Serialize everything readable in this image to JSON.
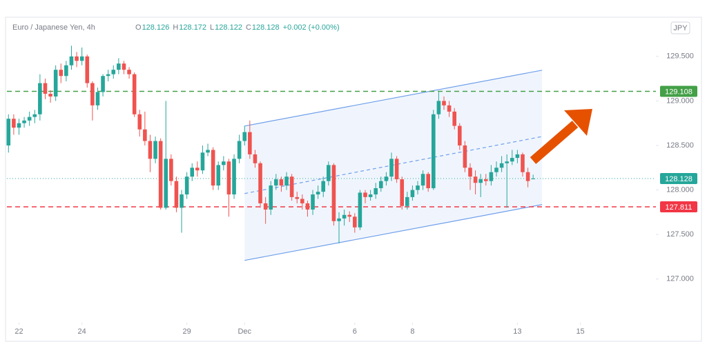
{
  "chart_data": {
    "type": "candlestick",
    "title": "Euro / Japanese Yen, 4h",
    "ohlc_legend": [
      {
        "label": "O",
        "value": 128.126
      },
      {
        "label": "H",
        "value": 128.172
      },
      {
        "label": "L",
        "value": 128.122
      },
      {
        "label": "C",
        "value": 128.128
      }
    ],
    "change": "+0.002 (+0.00%)",
    "currency": "JPY",
    "up_color": "#26a69a",
    "down_color": "#ef5350",
    "x": [
      0,
      1,
      2,
      3,
      4,
      5,
      6,
      7,
      8,
      9,
      10,
      11,
      12,
      13,
      14,
      15,
      16,
      17,
      18,
      19,
      20,
      21,
      22,
      23,
      24,
      25,
      26,
      27,
      28,
      29,
      30,
      31,
      32,
      33,
      34,
      35,
      36,
      37,
      38,
      39,
      40,
      41,
      42,
      43,
      44,
      45,
      46,
      47,
      48,
      49,
      50,
      51,
      52,
      53,
      54,
      55,
      56,
      57,
      58,
      59,
      60,
      61,
      62,
      63,
      64,
      65,
      66,
      67,
      68,
      69,
      70,
      71,
      72,
      73,
      74,
      75,
      76,
      77,
      78,
      79,
      80,
      81,
      82,
      83,
      84,
      85,
      86,
      87,
      88,
      89,
      90,
      91,
      92,
      93,
      94,
      95,
      96,
      97,
      98,
      99,
      100
    ],
    "open": [
      128.5,
      128.8,
      128.7,
      128.75,
      128.78,
      128.82,
      128.85,
      129.2,
      129.08,
      129.05,
      129.35,
      129.28,
      129.4,
      129.5,
      129.45,
      129.5,
      129.2,
      128.95,
      129.1,
      129.28,
      129.3,
      129.35,
      129.42,
      129.35,
      129.3,
      128.85,
      128.68,
      128.55,
      128.35,
      128.55,
      127.8,
      128.35,
      128.1,
      127.8,
      127.95,
      128.15,
      128.25,
      128.22,
      128.42,
      128.45,
      128.05,
      128.28,
      128.32,
      127.95,
      128.35,
      128.55,
      128.65,
      128.4,
      128.3,
      127.85,
      127.78,
      128.05,
      128.12,
      128.05,
      128.15,
      127.92,
      127.9,
      127.85,
      127.78,
      127.95,
      127.98,
      128.1,
      128.28,
      127.65,
      127.68,
      127.72,
      127.7,
      127.58,
      127.97,
      127.92,
      127.95,
      128.02,
      128.1,
      128.15,
      128.35,
      128.12,
      127.82,
      127.92,
      128.0,
      128.05,
      128.18,
      128.02,
      128.85,
      129.0,
      128.95,
      128.88,
      128.72,
      128.5,
      128.25,
      128.15,
      128.08,
      128.12,
      128.1,
      128.2,
      128.25,
      128.3,
      128.32,
      128.36,
      128.4,
      128.2,
      128.126
    ],
    "high": [
      128.85,
      128.85,
      128.8,
      128.82,
      128.88,
      128.9,
      129.3,
      129.25,
      129.12,
      129.4,
      129.42,
      129.45,
      129.62,
      129.55,
      129.6,
      129.52,
      129.22,
      129.15,
      129.3,
      129.35,
      129.4,
      129.48,
      129.45,
      129.38,
      129.32,
      128.9,
      128.88,
      128.62,
      128.6,
      128.58,
      129.0,
      128.4,
      128.15,
      128.0,
      128.2,
      128.3,
      128.32,
      128.5,
      128.52,
      128.48,
      128.32,
      128.38,
      128.35,
      128.4,
      128.62,
      128.72,
      128.78,
      128.45,
      128.32,
      127.92,
      128.1,
      128.18,
      128.15,
      128.2,
      128.18,
      127.98,
      127.95,
      127.88,
      128.0,
      128.05,
      128.15,
      128.32,
      128.3,
      127.75,
      127.78,
      127.76,
      127.74,
      128.0,
      128.0,
      128.0,
      128.08,
      128.15,
      128.2,
      128.42,
      128.38,
      128.15,
      127.98,
      128.05,
      128.1,
      128.22,
      128.2,
      128.9,
      129.1,
      129.05,
      129.0,
      128.92,
      128.75,
      128.55,
      128.3,
      128.22,
      128.18,
      128.18,
      128.28,
      128.32,
      128.38,
      128.4,
      128.45,
      128.45,
      128.42,
      128.25,
      128.172
    ],
    "low": [
      128.42,
      128.62,
      128.62,
      128.7,
      128.72,
      128.75,
      128.78,
      129.02,
      128.98,
      129.0,
      129.2,
      129.22,
      129.35,
      129.38,
      129.4,
      129.15,
      128.78,
      128.9,
      129.05,
      129.22,
      129.25,
      129.3,
      129.3,
      129.25,
      128.82,
      128.6,
      128.5,
      128.2,
      128.3,
      127.78,
      127.78,
      128.05,
      127.75,
      127.52,
      127.9,
      128.1,
      128.15,
      128.18,
      128.38,
      128.0,
      128.0,
      128.22,
      127.7,
      127.9,
      128.3,
      128.5,
      128.35,
      128.25,
      127.8,
      127.62,
      127.72,
      128.0,
      127.98,
      128.0,
      127.88,
      127.85,
      127.78,
      127.7,
      127.72,
      127.9,
      127.92,
      128.05,
      127.6,
      127.4,
      127.6,
      127.64,
      127.52,
      127.55,
      127.85,
      127.88,
      127.9,
      127.98,
      128.05,
      128.1,
      128.08,
      127.78,
      127.78,
      127.88,
      127.95,
      128.0,
      127.98,
      128.0,
      128.8,
      128.9,
      128.82,
      128.68,
      128.45,
      128.2,
      128.0,
      127.95,
      127.92,
      128.05,
      128.05,
      128.15,
      128.2,
      127.8,
      128.28,
      128.3,
      128.15,
      128.03,
      128.122
    ],
    "close": [
      128.8,
      128.7,
      128.75,
      128.78,
      128.82,
      128.85,
      129.2,
      129.08,
      129.05,
      129.35,
      129.28,
      129.4,
      129.5,
      129.45,
      129.5,
      129.2,
      128.95,
      129.1,
      129.28,
      129.3,
      129.35,
      129.42,
      129.35,
      129.3,
      128.85,
      128.68,
      128.55,
      128.35,
      128.55,
      127.8,
      128.35,
      128.1,
      127.8,
      127.95,
      128.15,
      128.25,
      128.22,
      128.42,
      128.45,
      128.05,
      128.28,
      128.32,
      127.95,
      128.35,
      128.55,
      128.65,
      128.4,
      128.3,
      127.85,
      127.78,
      128.05,
      128.12,
      128.05,
      128.15,
      127.92,
      127.9,
      127.85,
      127.78,
      127.95,
      127.98,
      128.1,
      128.28,
      127.65,
      127.68,
      127.72,
      127.7,
      127.58,
      127.97,
      127.92,
      127.95,
      128.02,
      128.1,
      128.15,
      128.35,
      128.12,
      127.82,
      127.92,
      128.0,
      128.05,
      128.18,
      128.02,
      128.85,
      129.0,
      128.95,
      128.88,
      128.72,
      128.5,
      128.25,
      128.15,
      128.08,
      128.12,
      128.1,
      128.2,
      128.25,
      128.3,
      128.32,
      128.36,
      128.4,
      128.2,
      128.1,
      128.128
    ],
    "xlim": [
      -0.3,
      123.4
    ],
    "ylim": [
      126.51,
      129.94
    ],
    "xticks": [
      {
        "value": 2,
        "label": "22"
      },
      {
        "value": 14,
        "label": "24"
      },
      {
        "value": 34,
        "label": "29"
      },
      {
        "value": 45,
        "label": "Dec"
      },
      {
        "value": 66,
        "label": "6"
      },
      {
        "value": 77,
        "label": "8"
      },
      {
        "value": 97,
        "label": "13"
      },
      {
        "value": 109,
        "label": "15"
      }
    ],
    "yticks": [
      {
        "value": 127,
        "label": "127.000"
      },
      {
        "value": 127.5,
        "label": "127.500"
      },
      {
        "value": 128,
        "label": "128.000"
      },
      {
        "value": 128.5,
        "label": "128.500"
      },
      {
        "value": 129,
        "label": "129.000"
      },
      {
        "value": 129.5,
        "label": "129.500"
      }
    ],
    "hlines": [
      {
        "value": 129.108,
        "color": "#43a047",
        "style": "dashed"
      },
      {
        "value": 127.811,
        "color": "#f23645",
        "style": "dashed"
      },
      {
        "value": 128.128,
        "color": "#26a69a",
        "style": "dotted"
      }
    ],
    "channel": {
      "upper": [
        [
          45,
          128.718
        ],
        [
          101.7,
          129.345
        ]
      ],
      "middle": [
        [
          45,
          127.96
        ],
        [
          101.7,
          128.6
        ]
      ],
      "lower": [
        [
          45,
          127.209
        ],
        [
          101.7,
          127.836
        ]
      ],
      "color": "#6d9eeb"
    }
  }
}
